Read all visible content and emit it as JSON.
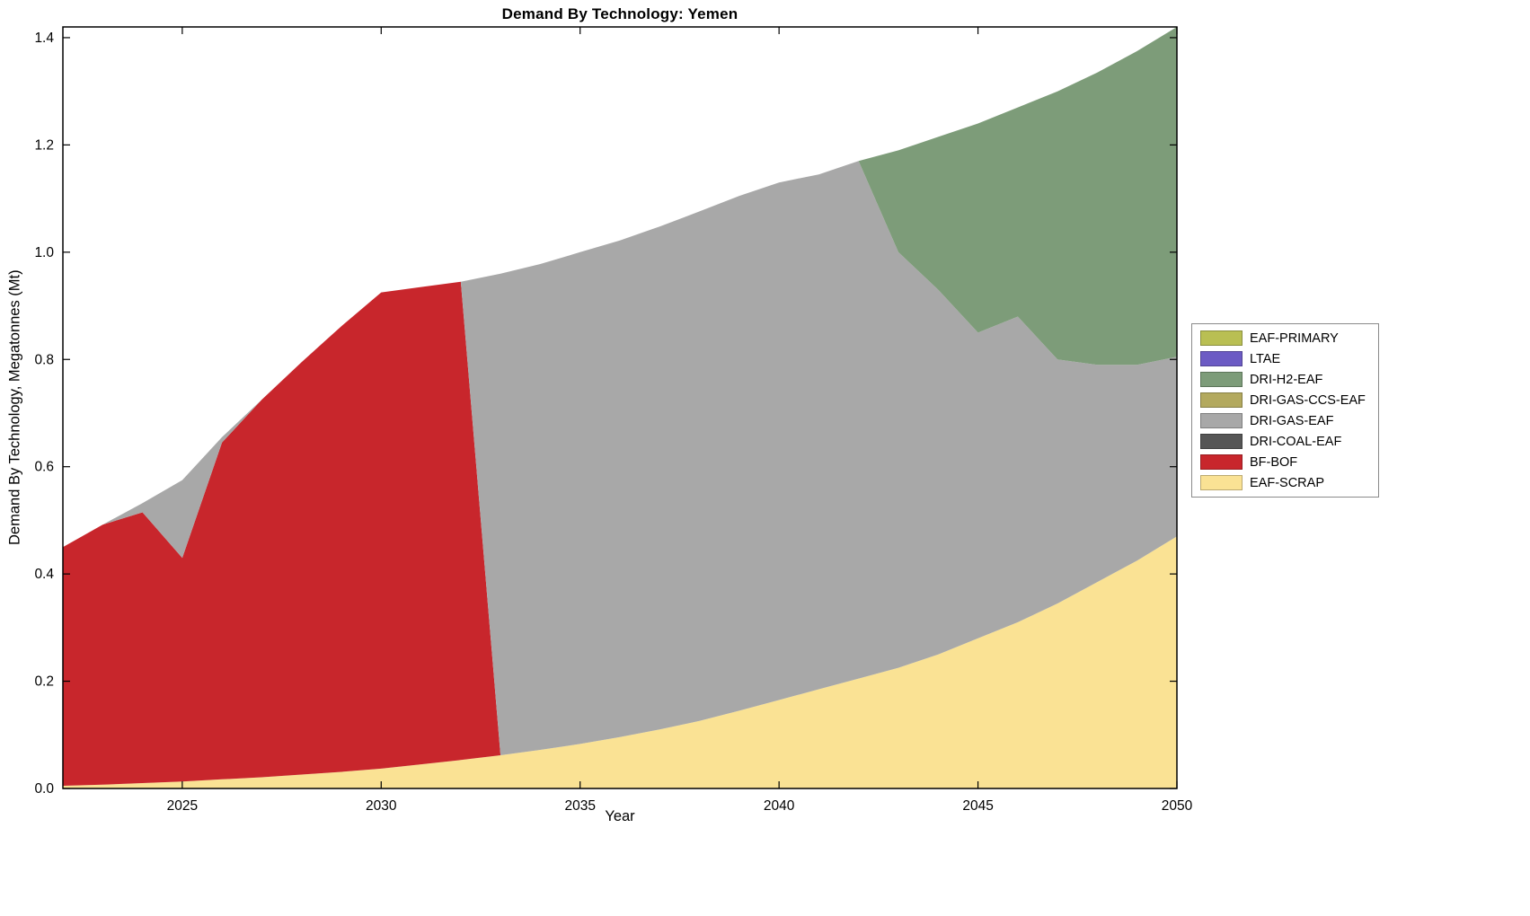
{
  "chart_data": {
    "type": "area",
    "stacked": true,
    "title": "Demand By Technology: Yemen",
    "xlabel": "Year",
    "ylabel": "Demand By Technology, Megatonnes (Mt)",
    "xlim": [
      2022,
      2050
    ],
    "ylim": [
      0,
      1.42
    ],
    "grid": false,
    "legend_position": "outside-right",
    "xticks": [
      2025,
      2030,
      2035,
      2040,
      2045,
      2050
    ],
    "xtick_labels": [
      "2025",
      "2030",
      "2035",
      "2040",
      "2045",
      "2050"
    ],
    "yticks": [
      0,
      0.2,
      0.4,
      0.6,
      0.8,
      1.0,
      1.2,
      1.4
    ],
    "ytick_labels": [
      "0.0",
      "0.2",
      "0.4",
      "0.6",
      "0.8",
      "1.0",
      "1.2",
      "1.4"
    ],
    "x": [
      2022,
      2023,
      2024,
      2025,
      2026,
      2027,
      2028,
      2029,
      2030,
      2031,
      2032,
      2033,
      2034,
      2035,
      2036,
      2037,
      2038,
      2039,
      2040,
      2041,
      2042,
      2043,
      2044,
      2045,
      2046,
      2047,
      2048,
      2049,
      2050
    ],
    "legend_order_top_to_bottom": [
      "EAF-PRIMARY",
      "LTAE",
      "DRI-H2-EAF",
      "DRI-GAS-CCS-EAF",
      "DRI-GAS-EAF",
      "DRI-COAL-EAF",
      "BF-BOF",
      "EAF-SCRAP"
    ],
    "stack_order_bottom_to_top": [
      "EAF-SCRAP",
      "BF-BOF",
      "DRI-COAL-EAF",
      "DRI-GAS-EAF",
      "DRI-GAS-CCS-EAF",
      "DRI-H2-EAF",
      "LTAE",
      "EAF-PRIMARY"
    ],
    "series": [
      {
        "name": "EAF-PRIMARY",
        "color": "#b9bf53",
        "values": [
          0,
          0,
          0,
          0,
          0,
          0,
          0,
          0,
          0,
          0,
          0,
          0,
          0,
          0,
          0,
          0,
          0,
          0,
          0,
          0,
          0,
          0,
          0,
          0,
          0,
          0,
          0,
          0,
          0
        ]
      },
      {
        "name": "LTAE",
        "color": "#6c5bc4",
        "values": [
          0,
          0,
          0,
          0,
          0,
          0,
          0,
          0,
          0,
          0,
          0,
          0,
          0,
          0,
          0,
          0,
          0,
          0,
          0,
          0,
          0,
          0,
          0,
          0,
          0,
          0,
          0,
          0,
          0
        ]
      },
      {
        "name": "DRI-H2-EAF",
        "color": "#7d9c79",
        "values": [
          0,
          0,
          0,
          0,
          0,
          0,
          0,
          0,
          0,
          0,
          0,
          0,
          0,
          0,
          0,
          0,
          0,
          0,
          0,
          0,
          0,
          0.19,
          0.285,
          0.39,
          0.39,
          0.5,
          0.545,
          0.585,
          0.615
        ]
      },
      {
        "name": "DRI-GAS-CCS-EAF",
        "color": "#b3a95e",
        "values": [
          0,
          0,
          0,
          0,
          0,
          0,
          0,
          0,
          0,
          0,
          0,
          0,
          0,
          0,
          0,
          0,
          0,
          0,
          0,
          0,
          0,
          0,
          0,
          0,
          0,
          0,
          0,
          0,
          0
        ]
      },
      {
        "name": "DRI-GAS-EAF",
        "color": "#a8a8a8",
        "values": [
          0,
          0,
          0.017,
          0.145,
          0.01,
          0,
          0,
          0,
          0,
          0,
          0,
          0.898,
          0.906,
          0.917,
          0.926,
          0.938,
          0.95,
          0.96,
          0.965,
          0.96,
          0.965,
          0.775,
          0.68,
          0.57,
          0.57,
          0.455,
          0.405,
          0.365,
          0.335
        ]
      },
      {
        "name": "DRI-COAL-EAF",
        "color": "#565656",
        "values": [
          0,
          0,
          0,
          0,
          0,
          0,
          0,
          0,
          0,
          0,
          0,
          0,
          0,
          0,
          0,
          0,
          0,
          0,
          0,
          0,
          0,
          0,
          0,
          0,
          0,
          0,
          0,
          0,
          0
        ]
      },
      {
        "name": "BF-BOF",
        "color": "#c8262c",
        "values": [
          0.445,
          0.485,
          0.505,
          0.417,
          0.628,
          0.704,
          0.769,
          0.831,
          0.888,
          0.89,
          0.892,
          0,
          0,
          0,
          0,
          0,
          0,
          0,
          0,
          0,
          0,
          0,
          0,
          0,
          0,
          0,
          0,
          0,
          0
        ]
      },
      {
        "name": "EAF-SCRAP",
        "color": "#fae294",
        "values": [
          0.005,
          0.007,
          0.01,
          0.013,
          0.017,
          0.021,
          0.026,
          0.031,
          0.037,
          0.045,
          0.053,
          0.062,
          0.072,
          0.083,
          0.096,
          0.11,
          0.126,
          0.145,
          0.165,
          0.185,
          0.205,
          0.225,
          0.25,
          0.28,
          0.31,
          0.345,
          0.385,
          0.425,
          0.47
        ]
      }
    ]
  }
}
